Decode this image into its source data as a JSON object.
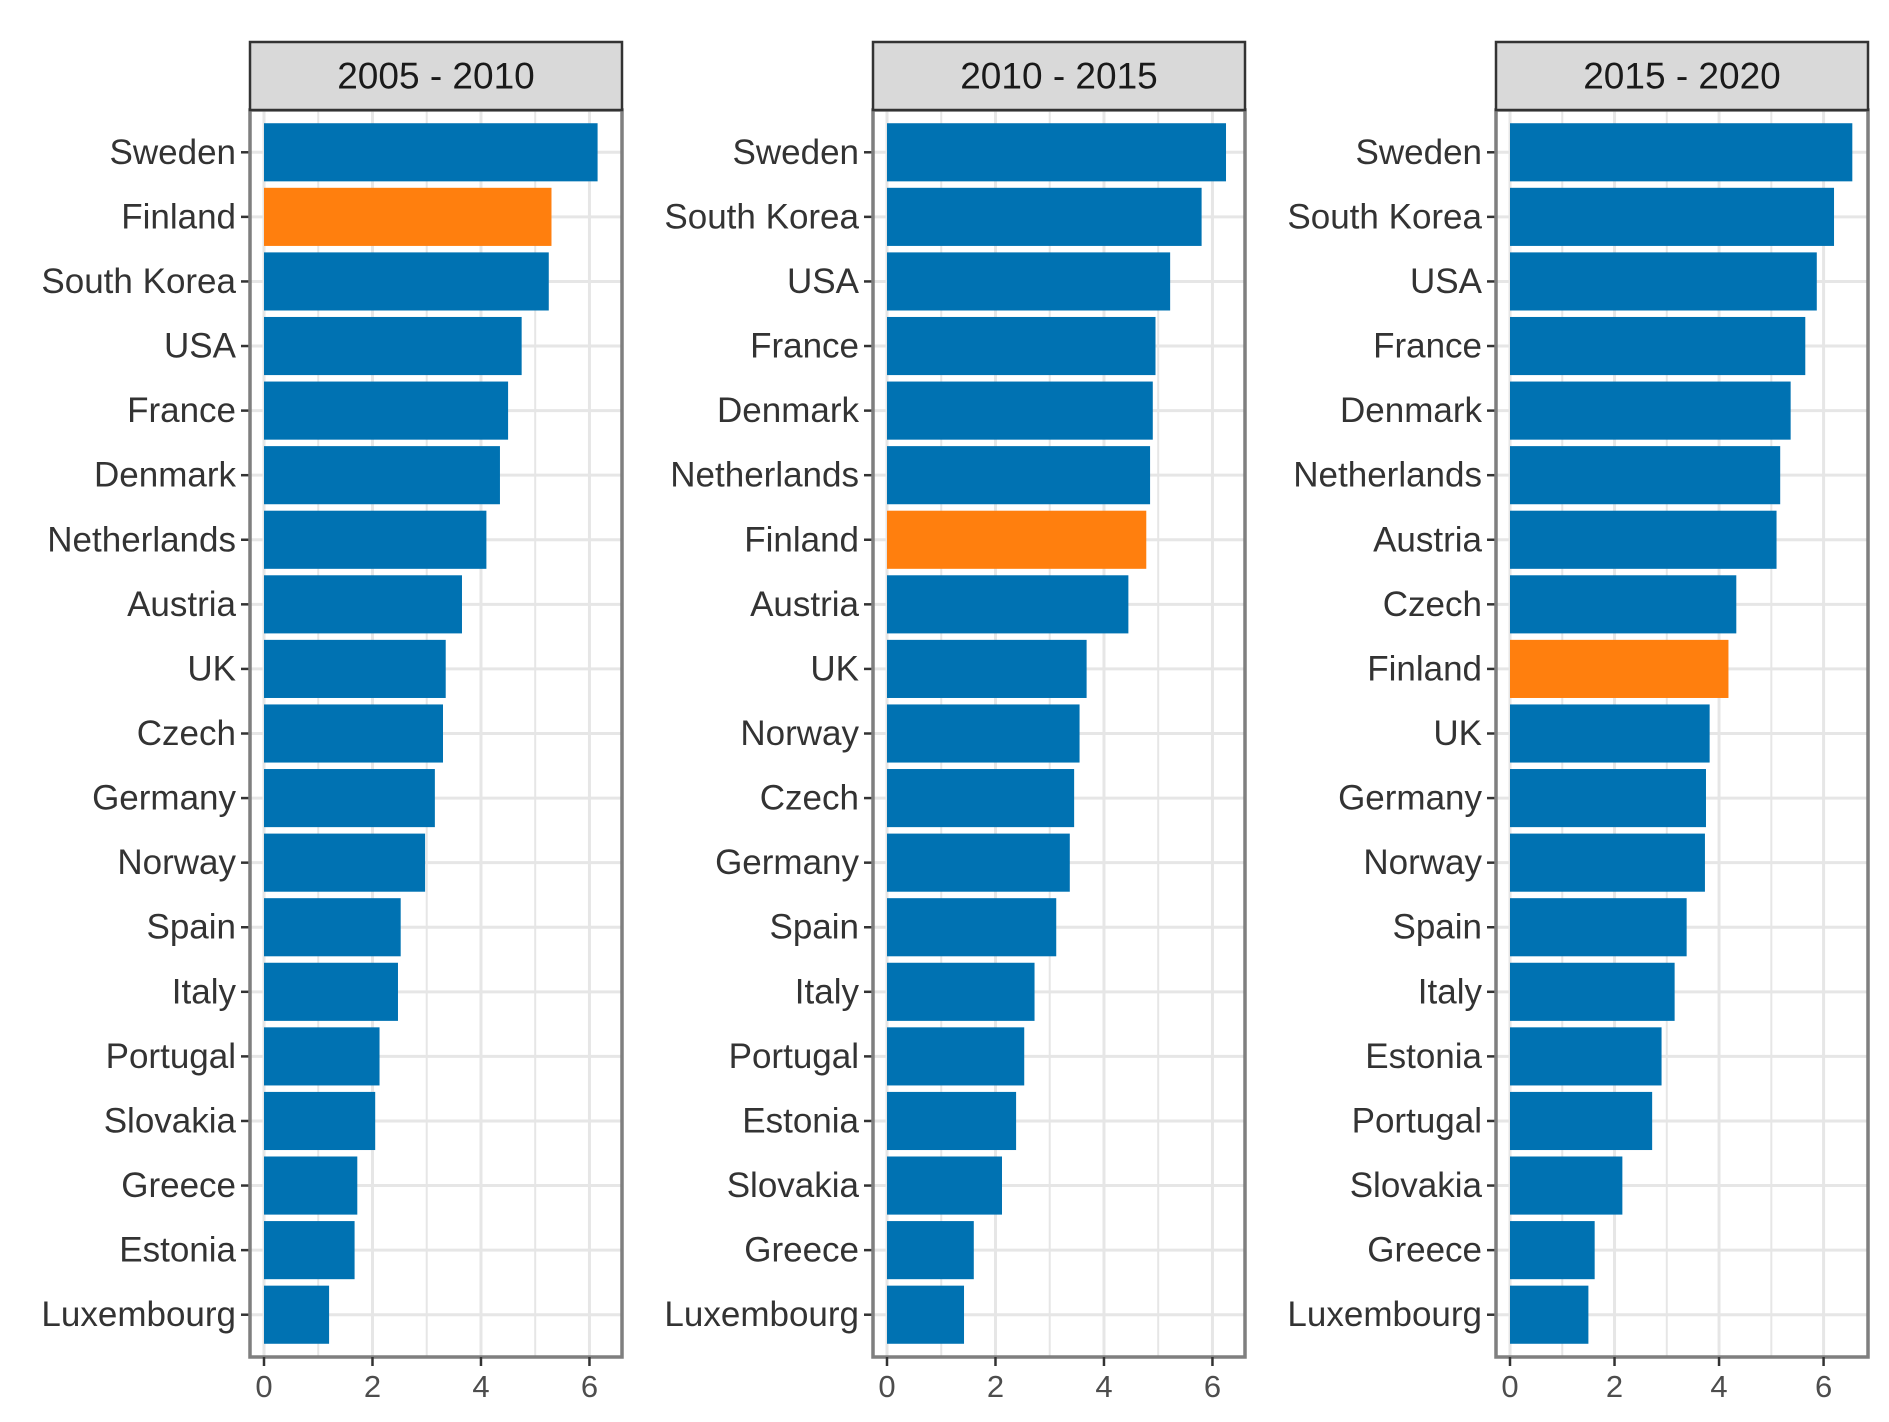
{
  "chart_data": [
    {
      "type": "bar",
      "orientation": "horizontal",
      "title": "2005 - 2010",
      "xlim": [
        0,
        6.6
      ],
      "x_ticks": [
        0,
        2,
        4,
        6
      ],
      "highlight_category": "Finland",
      "categories": [
        "Sweden",
        "Finland",
        "South Korea",
        "USA",
        "France",
        "Denmark",
        "Netherlands",
        "Austria",
        "UK",
        "Czech",
        "Germany",
        "Norway",
        "Spain",
        "Italy",
        "Portugal",
        "Slovakia",
        "Greece",
        "Estonia",
        "Luxembourg"
      ],
      "values": [
        6.15,
        5.3,
        5.25,
        4.75,
        4.5,
        4.35,
        4.1,
        3.65,
        3.35,
        3.3,
        3.15,
        2.97,
        2.52,
        2.47,
        2.13,
        2.05,
        1.72,
        1.67,
        1.2
      ]
    },
    {
      "type": "bar",
      "orientation": "horizontal",
      "title": "2010 - 2015",
      "xlim": [
        0,
        6.6
      ],
      "x_ticks": [
        0,
        2,
        4,
        6
      ],
      "highlight_category": "Finland",
      "categories": [
        "Sweden",
        "South Korea",
        "USA",
        "France",
        "Denmark",
        "Netherlands",
        "Finland",
        "Austria",
        "UK",
        "Norway",
        "Czech",
        "Germany",
        "Spain",
        "Italy",
        "Portugal",
        "Estonia",
        "Slovakia",
        "Greece",
        "Luxembourg"
      ],
      "values": [
        6.25,
        5.8,
        5.22,
        4.95,
        4.9,
        4.85,
        4.78,
        4.45,
        3.68,
        3.55,
        3.45,
        3.37,
        3.12,
        2.72,
        2.53,
        2.38,
        2.12,
        1.6,
        1.42
      ]
    },
    {
      "type": "bar",
      "orientation": "horizontal",
      "title": "2015 - 2020",
      "xlim": [
        0,
        6.85
      ],
      "x_ticks": [
        0,
        2,
        4,
        6
      ],
      "highlight_category": "Finland",
      "categories": [
        "Sweden",
        "South Korea",
        "USA",
        "France",
        "Denmark",
        "Netherlands",
        "Austria",
        "Czech",
        "Finland",
        "UK",
        "Germany",
        "Norway",
        "Spain",
        "Italy",
        "Estonia",
        "Portugal",
        "Slovakia",
        "Greece",
        "Luxembourg"
      ],
      "values": [
        6.55,
        6.2,
        5.87,
        5.65,
        5.37,
        5.17,
        5.1,
        4.33,
        4.18,
        3.82,
        3.75,
        3.73,
        3.38,
        3.15,
        2.9,
        2.72,
        2.15,
        1.62,
        1.5
      ]
    }
  ],
  "colors": {
    "bar": "#0072b2",
    "highlight": "#ff7f0e",
    "strip_fill": "#d9d9d9",
    "panel_border": "#7f7f7f",
    "grid": "#e6e6e6",
    "text": "#333333"
  }
}
